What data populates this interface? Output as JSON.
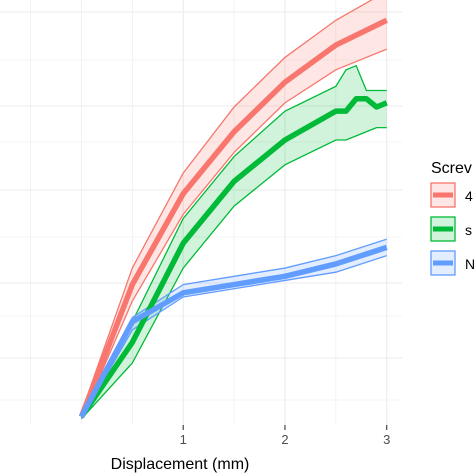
{
  "chart_data": {
    "type": "line",
    "title": "",
    "xlabel": "Displacement (mm)",
    "ylabel": "",
    "xlim": [
      -0.8,
      3.15
    ],
    "ylim": [
      0,
      1
    ],
    "x_ticks": [
      1,
      2,
      3
    ],
    "grid": true,
    "legend": {
      "title": "Screv",
      "placement": "right",
      "labels": [
        "4",
        "s",
        "N"
      ]
    },
    "series": [
      {
        "name": "4",
        "color": "#F8766D",
        "x": [
          0,
          0.5,
          1,
          1.5,
          2,
          2.5,
          3
        ],
        "mean": [
          0.02,
          0.34,
          0.56,
          0.71,
          0.83,
          0.92,
          0.98
        ],
        "lower": [
          0.015,
          0.3,
          0.51,
          0.66,
          0.78,
          0.86,
          0.91
        ],
        "upper": [
          0.03,
          0.38,
          0.61,
          0.77,
          0.89,
          0.98,
          1.05
        ]
      },
      {
        "name": "s",
        "color": "#00BA38",
        "x": [
          0,
          0.5,
          1,
          1.5,
          2,
          2.5,
          2.6,
          2.7,
          2.8,
          2.9,
          3
        ],
        "mean": [
          0.02,
          0.2,
          0.44,
          0.59,
          0.69,
          0.76,
          0.76,
          0.79,
          0.79,
          0.77,
          0.78
        ],
        "lower": [
          0.015,
          0.15,
          0.38,
          0.53,
          0.63,
          0.69,
          0.69,
          0.7,
          0.71,
          0.72,
          0.72
        ],
        "upper": [
          0.03,
          0.25,
          0.5,
          0.65,
          0.76,
          0.82,
          0.86,
          0.87,
          0.81,
          0.81,
          0.81
        ]
      },
      {
        "name": "N",
        "color": "#619CFF",
        "x": [
          0,
          0.5,
          1,
          1.5,
          2,
          2.5,
          3
        ],
        "mean": [
          0.02,
          0.25,
          0.32,
          0.34,
          0.36,
          0.39,
          0.43
        ],
        "lower": [
          0.015,
          0.23,
          0.31,
          0.33,
          0.35,
          0.37,
          0.41
        ],
        "upper": [
          0.03,
          0.26,
          0.34,
          0.36,
          0.38,
          0.41,
          0.45
        ]
      }
    ]
  }
}
